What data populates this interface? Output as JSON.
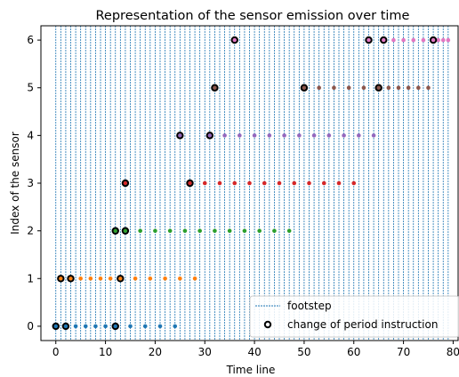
{
  "chart_data": {
    "type": "scatter",
    "title": "Representation of the sensor emission over time",
    "xlabel": "Time line",
    "ylabel": "Index of the sensor",
    "xlim": [
      -3,
      81
    ],
    "ylim": [
      -0.3,
      6.3
    ],
    "xticks": [
      "0",
      "10",
      "20",
      "30",
      "40",
      "50",
      "60",
      "70",
      "80"
    ],
    "yticks": [
      "0",
      "1",
      "2",
      "3",
      "4",
      "5",
      "6"
    ],
    "grid": false,
    "legend": {
      "placement": "lower-right",
      "entries": [
        "footstep",
        "change of period instruction"
      ]
    },
    "footsteps": {
      "color": "#1f77b4",
      "x": [
        0,
        1,
        2,
        3,
        4,
        5,
        6,
        7,
        8,
        9,
        10,
        11,
        12,
        13,
        14,
        15,
        16,
        17,
        18,
        19,
        20,
        21,
        22,
        23,
        24,
        25,
        26,
        27,
        28,
        29,
        30,
        31,
        32,
        33,
        34,
        35,
        36,
        37,
        38,
        39,
        40,
        41,
        42,
        43,
        44,
        45,
        46,
        47,
        48,
        49,
        50,
        51,
        52,
        53,
        54,
        55,
        56,
        57,
        58,
        59,
        60,
        61,
        62,
        63,
        64,
        65,
        66,
        67,
        68,
        69,
        70,
        71,
        72,
        73,
        74,
        75,
        76,
        77,
        78,
        79
      ]
    },
    "series": [
      {
        "sensor": 0,
        "color": "#1f77b4",
        "x": [
          0,
          2,
          4,
          6,
          8,
          10,
          12,
          15,
          18,
          21,
          24
        ]
      },
      {
        "sensor": 1,
        "color": "#ff7f0e",
        "x": [
          1,
          3,
          5,
          7,
          9,
          11,
          13,
          16,
          19,
          22,
          25,
          28
        ]
      },
      {
        "sensor": 2,
        "color": "#2ca02c",
        "x": [
          12,
          14,
          17,
          20,
          23,
          26,
          29,
          32,
          35,
          38,
          41,
          44,
          47
        ]
      },
      {
        "sensor": 3,
        "color": "#d62728",
        "x": [
          14,
          27,
          30,
          33,
          36,
          39,
          42,
          45,
          48,
          51,
          54,
          57,
          60
        ]
      },
      {
        "sensor": 4,
        "color": "#9467bd",
        "x": [
          25,
          31,
          34,
          37,
          40,
          43,
          46,
          49,
          52,
          55,
          58,
          61,
          64
        ]
      },
      {
        "sensor": 5,
        "color": "#8c564b",
        "x": [
          32,
          50,
          53,
          56,
          59,
          62,
          65,
          67,
          69,
          71,
          73,
          75
        ]
      },
      {
        "sensor": 6,
        "color": "#e377c2",
        "x": [
          36,
          63,
          66,
          68,
          70,
          72,
          74,
          76,
          77,
          78,
          79
        ]
      }
    ],
    "change_of_period_instruction": [
      [
        0,
        0
      ],
      [
        2,
        0
      ],
      [
        12,
        0
      ],
      [
        1,
        1
      ],
      [
        3,
        1
      ],
      [
        13,
        1
      ],
      [
        12,
        2
      ],
      [
        14,
        2
      ],
      [
        14,
        3
      ],
      [
        27,
        3
      ],
      [
        25,
        4
      ],
      [
        31,
        4
      ],
      [
        32,
        5
      ],
      [
        50,
        5
      ],
      [
        65,
        5
      ],
      [
        36,
        6
      ],
      [
        63,
        6
      ],
      [
        66,
        6
      ],
      [
        76,
        6
      ]
    ]
  }
}
